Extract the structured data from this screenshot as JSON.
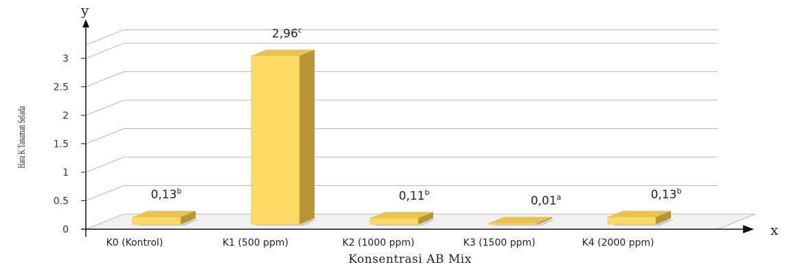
{
  "chart_data": {
    "type": "bar",
    "categories": [
      "K0 (Kontrol)",
      "K1 (500 ppm)",
      "K2 (1000 ppm)",
      "K3 (1500 ppm)",
      "K4 (2000 ppm)"
    ],
    "values": [
      0.13,
      2.96,
      0.11,
      0.01,
      0.13
    ],
    "data_labels": [
      "0,13",
      "2,96",
      "0,11",
      "0,01",
      "0,13"
    ],
    "significance": [
      "b",
      "c",
      "b",
      "a",
      "b"
    ],
    "xlabel": "Konsentrasi AB Mix",
    "ylabel": "Hara K Tanaman Selada",
    "x_axis_letter": "x",
    "y_axis_letter": "y",
    "yticks": [
      0,
      0.5,
      1,
      1.5,
      2,
      2.5,
      3
    ],
    "ytick_labels": [
      "0",
      "0.5",
      "1",
      "1.5",
      "2",
      "2.5",
      "3"
    ],
    "ylim": [
      0,
      3.5
    ],
    "grid": true,
    "legend": "none",
    "bar_color": "#FFD966",
    "bar_top_color": "#E8C255",
    "bar_side_color": "#B89636"
  }
}
